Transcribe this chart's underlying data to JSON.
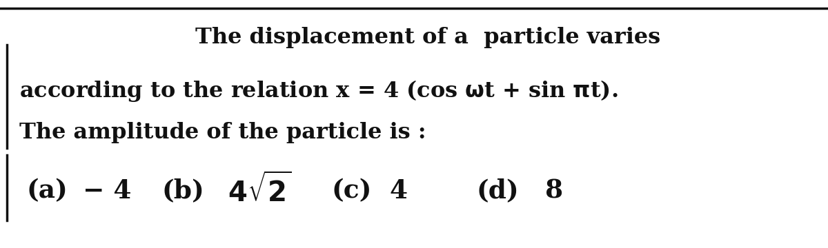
{
  "background_color": "#ffffff",
  "border_color": "#111111",
  "line1": "The displacement of a  particle varies",
  "line2": "according to the relation x = 4 (cos ωt + sin πt).",
  "line3": "The amplitude of the particle is :",
  "ans_a_label": "(a)",
  "ans_a_val": "− 4",
  "ans_b_label": "(b)",
  "ans_c_label": "(c)",
  "ans_c_val": "4",
  "ans_d_label": "(d)",
  "ans_d_val": "8",
  "font_size_main": 23,
  "font_size_answers": 27,
  "text_color": "#111111",
  "fig_width": 12.0,
  "fig_height": 3.6,
  "dpi": 100
}
